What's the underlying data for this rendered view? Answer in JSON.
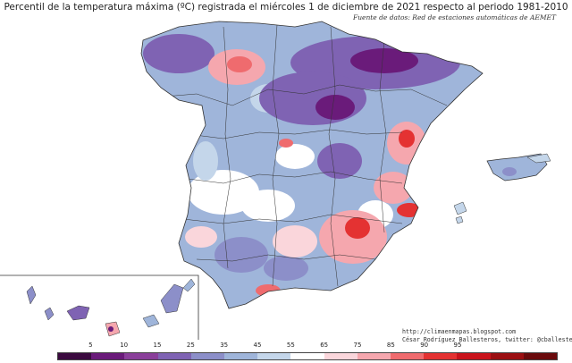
{
  "title": "Percentil de la temperatura máxima (ºC) registrada el miércoles 1 de diciembre de 2021 respecto al periodo 1981-2010",
  "subtitle": "Fuente de datos: Red de estaciones automáticas de AEMET",
  "credits": {
    "url": "http://climaenmapas.blogspot.com",
    "author": "César Rodríguez Ballesteros, twitter: @cballesteros"
  },
  "legend": {
    "ticks": [
      "5",
      "10",
      "15",
      "25",
      "35",
      "45",
      "55",
      "65",
      "75",
      "85",
      "90",
      "95"
    ],
    "colors": [
      "#3b0a3f",
      "#6a1b7a",
      "#8a3f9a",
      "#7f63b3",
      "#8c8fc9",
      "#9fb5da",
      "#c4d6ea",
      "#ffffff",
      "#fad6db",
      "#f5a7ae",
      "#ef6b6e",
      "#e43232",
      "#c9131c",
      "#9b0f12",
      "#6a0a0c"
    ]
  },
  "colors": {
    "low": "#6a1b7a",
    "mid_low": "#9fb5da",
    "neutral": "#ffffff",
    "mid_high": "#f5a7ae",
    "high": "#e43232"
  }
}
